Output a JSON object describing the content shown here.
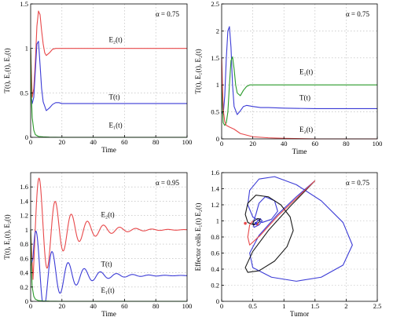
{
  "figure": {
    "colors": {
      "red": "#e8484a",
      "blue": "#3b3bd6",
      "green": "#2a9a2a",
      "black": "#1a1a1a",
      "grid": "#b3b3b3"
    }
  },
  "chart_data": [
    {
      "id": "a",
      "type": "line",
      "title": "",
      "annotation": "α = 0.75",
      "xlabel": "Time",
      "ylabel": "T(t), E₁(t), E₂(t)",
      "xlim": [
        0,
        100
      ],
      "ylim": [
        0,
        1.5
      ],
      "xticks": [
        0,
        20,
        40,
        60,
        80,
        100
      ],
      "yticks": [
        0,
        0.5,
        1,
        1.5
      ],
      "xtick_labels": [
        "0",
        "20",
        "40",
        "60",
        "80",
        "100"
      ],
      "ytick_labels": [
        "0",
        "0.5",
        "1",
        "1.5"
      ],
      "grid": true,
      "series": [
        {
          "name": "E₂(t)",
          "color": "red",
          "x": [
            0,
            1,
            2,
            3,
            4,
            5,
            6,
            7,
            8,
            9,
            10,
            12,
            14,
            16,
            18,
            20,
            25,
            30,
            40,
            60,
            80,
            100
          ],
          "y": [
            1.0,
            0.45,
            0.55,
            0.85,
            1.25,
            1.42,
            1.38,
            1.2,
            1.05,
            0.95,
            0.92,
            0.95,
            0.99,
            1.0,
            1.0,
            1.0,
            1.0,
            1.0,
            1.0,
            1.0,
            1.0,
            1.0
          ]
        },
        {
          "name": "T(t)",
          "color": "blue",
          "x": [
            0,
            1,
            2,
            3,
            4,
            5,
            6,
            7,
            8,
            10,
            12,
            14,
            16,
            18,
            20,
            25,
            30,
            40,
            60,
            80,
            100
          ],
          "y": [
            0.5,
            0.38,
            0.45,
            0.75,
            1.05,
            1.08,
            0.82,
            0.55,
            0.4,
            0.3,
            0.33,
            0.37,
            0.39,
            0.39,
            0.38,
            0.38,
            0.38,
            0.38,
            0.38,
            0.38,
            0.38
          ]
        },
        {
          "name": "E₁(t)",
          "color": "green",
          "x": [
            0,
            0.5,
            1,
            2,
            3,
            5,
            8,
            12,
            20,
            40,
            60,
            80,
            100
          ],
          "y": [
            1.0,
            0.45,
            0.22,
            0.08,
            0.03,
            0.01,
            0.005,
            0.002,
            0.0,
            0.0,
            0.0,
            0.0,
            0.0
          ]
        }
      ],
      "labels": [
        {
          "text": "E₂(t)",
          "x": 50,
          "y": 1.07
        },
        {
          "text": "T(t)",
          "x": 50,
          "y": 0.43
        },
        {
          "text": "E₁(t)",
          "x": 50,
          "y": 0.11
        }
      ]
    },
    {
      "id": "b",
      "type": "line",
      "title": "",
      "annotation": "α = 0.75",
      "xlabel": "Time",
      "ylabel": "T(t), E₁(t), E₂(t)",
      "xlim": [
        0,
        100
      ],
      "ylim": [
        0,
        2.5
      ],
      "xticks": [
        0,
        20,
        40,
        60,
        80,
        100
      ],
      "yticks": [
        0,
        0.5,
        1,
        1.5,
        2,
        2.5
      ],
      "xtick_labels": [
        "0",
        "20",
        "40",
        "60",
        "80",
        "100"
      ],
      "ytick_labels": [
        "0",
        "0.5",
        "1",
        "1.5",
        "2",
        "2.5"
      ],
      "grid": true,
      "series": [
        {
          "name": "T(t)",
          "color": "blue",
          "x": [
            0,
            1,
            2,
            3,
            4,
            5,
            6,
            7,
            8,
            10,
            12,
            14,
            16,
            20,
            25,
            30,
            40,
            60,
            80,
            100
          ],
          "y": [
            0.5,
            0.45,
            0.8,
            1.5,
            2.0,
            2.08,
            1.7,
            1.0,
            0.6,
            0.45,
            0.52,
            0.6,
            0.62,
            0.6,
            0.58,
            0.58,
            0.57,
            0.56,
            0.56,
            0.56
          ]
        },
        {
          "name": "E₁(t)",
          "color": "green",
          "x": [
            0,
            1,
            2,
            3,
            4,
            5,
            6,
            7,
            8,
            9,
            10,
            12,
            14,
            16,
            18,
            20,
            25,
            30,
            40,
            60,
            80,
            100
          ],
          "y": [
            1.0,
            0.3,
            0.25,
            0.3,
            0.5,
            1.0,
            1.45,
            1.52,
            1.3,
            1.0,
            0.85,
            0.8,
            0.9,
            0.97,
            1.0,
            1.0,
            1.0,
            1.0,
            1.0,
            1.0,
            1.0,
            1.0
          ]
        },
        {
          "name": "E₂(t)",
          "color": "red",
          "x": [
            0,
            1,
            2,
            3,
            5,
            8,
            12,
            20,
            30,
            40,
            60,
            80,
            100
          ],
          "y": [
            1.5,
            0.55,
            0.32,
            0.25,
            0.22,
            0.18,
            0.1,
            0.04,
            0.02,
            0.01,
            0.0,
            0.0,
            0.0
          ]
        }
      ],
      "labels": [
        {
          "text": "E₁(t)",
          "x": 50,
          "y": 1.2
        },
        {
          "text": "T(t)",
          "x": 50,
          "y": 0.72
        },
        {
          "text": "E₂(t)",
          "x": 50,
          "y": 0.13
        }
      ]
    },
    {
      "id": "c",
      "type": "line",
      "title": "",
      "annotation": "α = 0.95",
      "xlabel": "Time",
      "ylabel": "T(t), E₁(t), E₂(t)",
      "xlim": [
        0,
        100
      ],
      "ylim": [
        0,
        1.8
      ],
      "xticks": [
        0,
        20,
        40,
        60,
        80,
        100
      ],
      "yticks": [
        0,
        0.2,
        0.4,
        0.6,
        0.8,
        1,
        1.2,
        1.4,
        1.6
      ],
      "xtick_labels": [
        "0",
        "20",
        "40",
        "60",
        "80",
        "100"
      ],
      "ytick_labels": [
        "0",
        "0.2",
        "0.4",
        "0.6",
        "0.8",
        "1",
        "1.2",
        "1.4",
        "1.6"
      ],
      "grid": true,
      "series": [
        {
          "name": "E₂(t)",
          "color": "red",
          "period": 10.3,
          "base": 1.0,
          "amp": 0.72,
          "decay": 0.058,
          "phase_peak": 5.5
        },
        {
          "name": "T(t)",
          "color": "blue",
          "period": 10.3,
          "base": 0.36,
          "amp": 0.62,
          "decay": 0.06,
          "phase_peak": 3.5
        },
        {
          "name": "E₁(t)",
          "color": "green",
          "x": [
            0,
            0.5,
            1,
            2,
            3,
            5,
            8,
            12,
            20,
            40,
            60,
            80,
            100
          ],
          "y": [
            1.0,
            0.45,
            0.2,
            0.07,
            0.03,
            0.01,
            0.005,
            0.002,
            0.0,
            0.0,
            0.0,
            0.0,
            0.0
          ]
        }
      ],
      "labels": [
        {
          "text": "E₂(t)",
          "x": 45,
          "y": 1.18
        },
        {
          "text": "T(t)",
          "x": 45,
          "y": 0.49
        },
        {
          "text": "E₁(t)",
          "x": 45,
          "y": 0.12
        }
      ]
    },
    {
      "id": "d",
      "type": "line",
      "title": "",
      "annotation": "α = 0.75",
      "xlabel": "Tumor",
      "ylabel": "Effector cells E₁(t) E₂(t)",
      "xlim": [
        0,
        2.5
      ],
      "ylim": [
        0,
        1.6
      ],
      "xticks": [
        0,
        0.5,
        1,
        1.5,
        2,
        2.5
      ],
      "yticks": [
        0,
        0.2,
        0.4,
        0.6,
        0.8,
        1,
        1.2,
        1.4,
        1.6
      ],
      "xtick_labels": [
        "0",
        "0.5",
        "1",
        "1.5",
        "2",
        "2.5"
      ],
      "ytick_labels": [
        "0",
        "0.2",
        "0.4",
        "0.6",
        "0.8",
        "1",
        "1.2",
        "1.4",
        "1.6"
      ],
      "grid": true,
      "series": [
        {
          "name": "",
          "color": "blue",
          "x": [
            1.5,
            1.2,
            0.9,
            0.6,
            0.45,
            0.5,
            0.8,
            1.2,
            1.6,
            1.95,
            2.1,
            1.95,
            1.6,
            1.2,
            0.85,
            0.6,
            0.45,
            0.42,
            0.5,
            0.65,
            0.8,
            0.9,
            0.85,
            0.7,
            0.6,
            0.55,
            0.5,
            0.52,
            0.6,
            0.65,
            0.62,
            0.58,
            0.55,
            0.56,
            0.58
          ],
          "y": [
            1.5,
            1.3,
            1.08,
            0.82,
            0.6,
            0.42,
            0.3,
            0.25,
            0.3,
            0.45,
            0.7,
            0.98,
            1.25,
            1.45,
            1.55,
            1.52,
            1.38,
            1.2,
            1.05,
            0.98,
            1.02,
            1.12,
            1.25,
            1.3,
            1.22,
            1.08,
            0.97,
            0.92,
            0.95,
            1.0,
            1.03,
            1.0,
            0.97,
            0.96,
            0.97
          ]
        },
        {
          "name": "",
          "color": "black",
          "x": [
            1.5,
            1.1,
            0.75,
            0.5,
            0.38,
            0.42,
            0.6,
            0.85,
            1.05,
            1.15,
            1.1,
            0.95,
            0.75,
            0.55,
            0.42,
            0.38,
            0.42,
            0.52,
            0.6,
            0.62,
            0.58,
            0.52,
            0.5,
            0.52,
            0.56,
            0.57
          ],
          "y": [
            1.5,
            1.18,
            0.88,
            0.62,
            0.42,
            0.36,
            0.38,
            0.5,
            0.68,
            0.88,
            1.05,
            1.2,
            1.3,
            1.32,
            1.22,
            1.08,
            0.98,
            0.95,
            0.98,
            1.02,
            1.03,
            1.0,
            0.97,
            0.96,
            0.97,
            0.98
          ]
        },
        {
          "name": "",
          "color": "red",
          "x": [
            1.5,
            1.2,
            0.9,
            0.62,
            0.45,
            0.42,
            0.45,
            0.5
          ],
          "y": [
            1.5,
            1.28,
            1.06,
            0.82,
            0.7,
            0.8,
            0.95,
            1.0
          ]
        }
      ],
      "markers": [
        {
          "x": 0.38,
          "y": 0.97,
          "color": "red"
        },
        {
          "x": 0.57,
          "y": 0.96,
          "color": "red"
        },
        {
          "x": 0.55,
          "y": 0.97,
          "color": "blue"
        }
      ],
      "labels": []
    }
  ]
}
